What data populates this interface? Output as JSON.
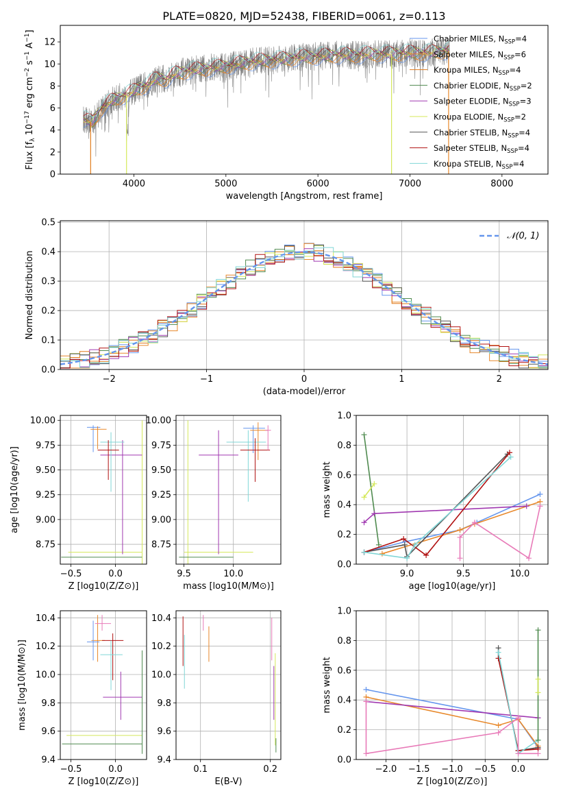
{
  "title": "PLATE=0820, MJD=52438, FIBERID=0061, z=0.113",
  "colors": {
    "chabrier_miles": "#6495ed",
    "salpeter_miles": "#e8882a",
    "kroupa_miles": "#e07a1a",
    "chabrier_elodie": "#4f8a4f",
    "salpeter_elodie": "#a038b0",
    "kroupa_elodie": "#d4e85a",
    "chabrier_stelib": "#555555",
    "salpeter_stelib": "#b01010",
    "kroupa_stelib": "#7fd6d6",
    "pink": "#e87ab8",
    "data": "#808080",
    "normal": "#6495ed"
  },
  "chart_data": [
    {
      "type": "line",
      "panel": "spectrum",
      "xlabel": "wavelength [Angstrom, rest frame]",
      "ylabel": "Flux [f_λ 10^-17 erg cm^-2 s^-1 A^-1]",
      "xlim": [
        3200,
        8500
      ],
      "ylim": [
        0,
        13.5
      ],
      "xticks": [
        "4000",
        "5000",
        "6000",
        "7000",
        "8000"
      ],
      "yticks": [
        "0",
        "2",
        "4",
        "6",
        "8",
        "10",
        "12"
      ],
      "legend_position": "right",
      "series": [
        {
          "name": "Chabrier MILES, N",
          "sub": "SSP",
          "suffix": "=4",
          "key": "chabrier_miles"
        },
        {
          "name": "Salpeter MILES, N",
          "sub": "SSP",
          "suffix": "=6",
          "key": "salpeter_miles"
        },
        {
          "name": "Kroupa MILES, N",
          "sub": "SSP",
          "suffix": "=4",
          "key": "kroupa_miles"
        },
        {
          "name": "Chabrier ELODIE, N",
          "sub": "SSP",
          "suffix": "=2",
          "key": "chabrier_elodie"
        },
        {
          "name": "Salpeter ELODIE, N",
          "sub": "SSP",
          "suffix": "=3",
          "key": "salpeter_elodie"
        },
        {
          "name": "Kroupa ELODIE, N",
          "sub": "SSP",
          "suffix": "=2",
          "key": "kroupa_elodie"
        },
        {
          "name": "Chabrier STELIB, N",
          "sub": "SSP",
          "suffix": "=4",
          "key": "chabrier_stelib"
        },
        {
          "name": "Salpeter STELIB, N",
          "sub": "SSP",
          "suffix": "=4",
          "key": "salpeter_stelib"
        },
        {
          "name": "Kroupa STELIB, N",
          "sub": "SSP",
          "suffix": "=4",
          "key": "kroupa_stelib"
        }
      ],
      "continuum": [
        [
          3450,
          5.0
        ],
        [
          3550,
          4.7
        ],
        [
          3650,
          6.0
        ],
        [
          3750,
          6.6
        ],
        [
          3850,
          7.0
        ],
        [
          3950,
          7.3
        ],
        [
          4050,
          7.8
        ],
        [
          4150,
          8.1
        ],
        [
          4250,
          8.7
        ],
        [
          4350,
          8.6
        ],
        [
          4450,
          9.1
        ],
        [
          4600,
          9.4
        ],
        [
          4800,
          9.6
        ],
        [
          5000,
          9.8
        ],
        [
          5200,
          10.1
        ],
        [
          5400,
          10.3
        ],
        [
          5600,
          10.4
        ],
        [
          5800,
          10.6
        ],
        [
          6000,
          10.7
        ],
        [
          6200,
          10.8
        ],
        [
          6400,
          10.8
        ],
        [
          6600,
          10.9
        ],
        [
          6800,
          10.9
        ],
        [
          7000,
          11.0
        ],
        [
          7200,
          11.0
        ],
        [
          7400,
          11.2
        ]
      ],
      "model_dropouts": [
        [
          3530,
          "kroupa_miles"
        ],
        [
          3920,
          "kroupa_elodie"
        ],
        [
          6800,
          "kroupa_elodie"
        ],
        [
          7420,
          "salpeter_miles"
        ]
      ]
    },
    {
      "type": "line",
      "panel": "residuals",
      "xlabel": "(data-model)/error",
      "ylabel": "Normed distribution",
      "xlim": [
        -2.5,
        2.5
      ],
      "ylim": [
        0,
        0.505
      ],
      "xticks": [
        "−2",
        "−1",
        "0",
        "1",
        "2"
      ],
      "yticks": [
        "0.0",
        "0.1",
        "0.2",
        "0.3",
        "0.4",
        "0.5"
      ],
      "legend": "𝒩(0, 1)",
      "legend_position": "top-right"
    },
    {
      "type": "scatter",
      "panel": "age-vs-Z",
      "xlabel": "Z [log10(Z/Z⊙)]",
      "ylabel": "age [log10(age/yr)]",
      "xlim": [
        -0.62,
        0.35
      ],
      "ylim": [
        8.55,
        10.05
      ],
      "xticks": [
        "−0.5",
        "0.0"
      ],
      "yticks": [
        "8.75",
        "9.00",
        "9.25",
        "9.50",
        "9.75",
        "10.00"
      ]
    },
    {
      "type": "scatter",
      "panel": "age-vs-mass",
      "xlabel": "mass [log10(M/M⊙)]",
      "xlim": [
        9.42,
        10.48
      ],
      "ylim": [
        8.55,
        10.05
      ],
      "xticks": [
        "9.5",
        "10.0"
      ],
      "yticks": [
        "8.75",
        "9.00",
        "9.25",
        "9.50",
        "9.75",
        "10.00"
      ]
    },
    {
      "type": "line",
      "panel": "weight-vs-age",
      "xlabel": "age [log10(age/yr)]",
      "ylabel": "mass weight",
      "xlim": [
        8.55,
        10.25
      ],
      "ylim": [
        0,
        1.0
      ],
      "xticks": [
        "9.0",
        "9.5",
        "10.0"
      ],
      "yticks": [
        "0.0",
        "0.2",
        "0.4",
        "0.6",
        "0.8",
        "1.0"
      ],
      "series": [
        {
          "key": "chabrier_miles",
          "x": [
            8.62,
            8.98,
            9.47,
            9.62,
            10.18
          ],
          "y": [
            0.08,
            0.15,
            0.23,
            0.28,
            0.47
          ]
        },
        {
          "key": "salpeter_miles",
          "x": [
            8.78,
            9.47,
            9.6,
            10.18
          ],
          "y": [
            0.07,
            0.23,
            0.27,
            0.42
          ]
        },
        {
          "key": "chabrier_elodie",
          "x": [
            8.62,
            8.75
          ],
          "y": [
            0.87,
            0.13
          ]
        },
        {
          "key": "salpeter_elodie",
          "x": [
            8.62,
            8.71,
            10.06
          ],
          "y": [
            0.28,
            0.34,
            0.39
          ]
        },
        {
          "key": "kroupa_elodie",
          "x": [
            8.62,
            8.71
          ],
          "y": [
            0.45,
            0.54
          ]
        },
        {
          "key": "chabrier_stelib",
          "x": [
            8.62,
            8.98,
            9.0,
            9.89
          ],
          "y": [
            0.08,
            0.13,
            0.05,
            0.74
          ]
        },
        {
          "key": "salpeter_stelib",
          "x": [
            8.62,
            8.97,
            9.17,
            9.91
          ],
          "y": [
            0.08,
            0.17,
            0.06,
            0.75
          ]
        },
        {
          "key": "kroupa_stelib",
          "x": [
            8.62,
            9.0,
            9.07,
            9.92
          ],
          "y": [
            0.08,
            0.04,
            0.13,
            0.72
          ]
        },
        {
          "key": "pink",
          "x": [
            9.47,
            9.47,
            9.6,
            10.08,
            10.18
          ],
          "y": [
            0.04,
            0.18,
            0.28,
            0.04,
            0.39
          ]
        }
      ]
    },
    {
      "type": "scatter",
      "panel": "mass-vs-Z",
      "xlabel": "Z [log10(Z/Z⊙)]",
      "ylabel": "mass [log10(M/M⊙)]",
      "xlim": [
        -0.62,
        0.35
      ],
      "ylim": [
        9.4,
        10.45
      ],
      "xticks": [
        "−0.5",
        "0.0"
      ],
      "yticks": [
        "9.4",
        "9.6",
        "9.8",
        "10.0",
        "10.2",
        "10.4"
      ]
    },
    {
      "type": "scatter",
      "panel": "mass-vs-EBV",
      "xlabel": "E(B-V)",
      "xlim": [
        0.065,
        0.215
      ],
      "ylim": [
        9.4,
        10.45
      ],
      "xticks": [
        "0.1",
        "0.2"
      ],
      "yticks": [
        "9.4",
        "9.6",
        "9.8",
        "10.0",
        "10.2",
        "10.4"
      ]
    },
    {
      "type": "line",
      "panel": "weight-vs-Z",
      "xlabel": "Z [log10(Z/Z⊙)]",
      "ylabel": "mass weight",
      "xlim": [
        -2.45,
        0.45
      ],
      "ylim": [
        0,
        1.0
      ],
      "xticks": [
        "−2.0",
        "−1.5",
        "−1.0",
        "−0.5",
        "0.0"
      ],
      "yticks": [
        "0.0",
        "0.2",
        "0.4",
        "0.6",
        "0.8",
        "1.0"
      ],
      "series": [
        {
          "key": "chabrier_miles",
          "x": [
            -2.3,
            0.0,
            0.3
          ],
          "y": [
            0.47,
            0.27,
            0.08
          ]
        },
        {
          "key": "salpeter_miles",
          "x": [
            -2.3,
            -0.3,
            0.0,
            0.3
          ],
          "y": [
            0.42,
            0.23,
            0.27,
            0.09
          ]
        },
        {
          "key": "salpeter_elodie",
          "x": [
            -2.3,
            0.3
          ],
          "y": [
            0.39,
            0.28
          ]
        },
        {
          "key": "chabrier_stelib",
          "x": [
            -0.3,
            -0.3,
            0.0,
            0.3
          ],
          "y": [
            0.75,
            0.68,
            0.06,
            0.08
          ]
        },
        {
          "key": "salpeter_stelib",
          "x": [
            -0.3,
            0.0,
            0.3
          ],
          "y": [
            0.68,
            0.06,
            0.07
          ]
        },
        {
          "key": "kroupa_stelib",
          "x": [
            -0.3,
            0.0,
            0.3
          ],
          "y": [
            0.72,
            0.04,
            0.13
          ]
        },
        {
          "key": "pink",
          "x": [
            -2.3,
            -2.3,
            -0.3,
            0.0,
            0.0,
            0.3
          ],
          "y": [
            0.39,
            0.04,
            0.18,
            0.28,
            0.04,
            0.04
          ]
        },
        {
          "key": "chabrier_elodie",
          "x": [
            0.3,
            0.3
          ],
          "y": [
            0.87,
            0.13
          ]
        },
        {
          "key": "kroupa_elodie",
          "x": [
            0.3,
            0.3
          ],
          "y": [
            0.45,
            0.54
          ]
        }
      ]
    }
  ]
}
